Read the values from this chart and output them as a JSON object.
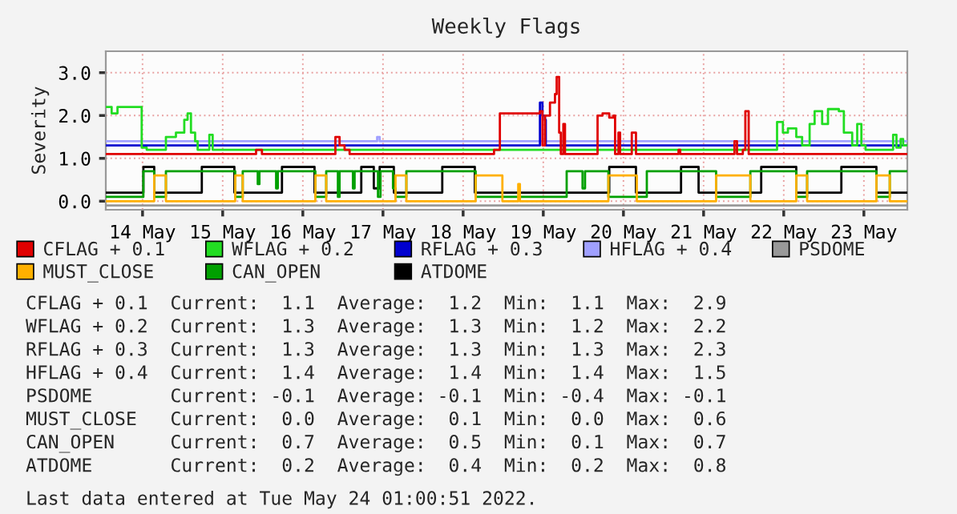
{
  "chart_data": {
    "type": "step",
    "title": "Weekly Flags",
    "ylabel": "Severity",
    "xlim": [
      "2022-05-13T13:00",
      "2022-05-23T13:00"
    ],
    "xticks": [
      {
        "value": "2022-05-14",
        "label": "14 May"
      },
      {
        "value": "2022-05-15",
        "label": "15 May"
      },
      {
        "value": "2022-05-16",
        "label": "16 May"
      },
      {
        "value": "2022-05-17",
        "label": "17 May"
      },
      {
        "value": "2022-05-18",
        "label": "18 May"
      },
      {
        "value": "2022-05-19",
        "label": "19 May"
      },
      {
        "value": "2022-05-20",
        "label": "20 May"
      },
      {
        "value": "2022-05-21",
        "label": "21 May"
      },
      {
        "value": "2022-05-22",
        "label": "22 May"
      },
      {
        "value": "2022-05-23",
        "label": "23 May"
      }
    ],
    "ylim": [
      -0.2,
      3.5
    ],
    "yticks": [
      {
        "value": 0,
        "label": "0.0"
      },
      {
        "value": 1,
        "label": "1.0"
      },
      {
        "value": 2,
        "label": "2.0"
      },
      {
        "value": 3,
        "label": "3.0"
      }
    ],
    "grid": true,
    "legend": "bottom",
    "series": [
      {
        "name": "CFLAG + 0.1",
        "color": "#e00000",
        "x": [
          "2022-05-13T13:00",
          "2022-05-15T10:00",
          "2022-05-15T11:45",
          "2022-05-16T09:45",
          "2022-05-16T11:00",
          "2022-05-16T12:30",
          "2022-05-16T14:00",
          "2022-05-18T09:15",
          "2022-05-18T11:00",
          "2022-05-18T23:00",
          "2022-05-18T23:45",
          "2022-05-19T00:30",
          "2022-05-19T02:00",
          "2022-05-19T03:30",
          "2022-05-19T04:00",
          "2022-05-19T04:45",
          "2022-05-19T05:15",
          "2022-05-19T06:00",
          "2022-05-19T06:30",
          "2022-05-19T16:15",
          "2022-05-19T17:45",
          "2022-05-19T19:45",
          "2022-05-19T21:00",
          "2022-05-19T21:30",
          "2022-05-19T22:30",
          "2022-05-19T23:00",
          "2022-05-20T02:30",
          "2022-05-20T03:45",
          "2022-05-20T16:30",
          "2022-05-20T17:00",
          "2022-05-21T09:15",
          "2022-05-21T10:00",
          "2022-05-21T11:45",
          "2022-05-21T12:30",
          "2022-05-21T13:30",
          "2022-05-23T13:00"
        ],
        "values": [
          1.1,
          1.2,
          1.1,
          1.5,
          1.3,
          1.2,
          1.1,
          1.2,
          2.05,
          2.1,
          1.3,
          2.0,
          2.3,
          2.5,
          2.9,
          1.6,
          1.1,
          1.8,
          1.1,
          2.0,
          2.05,
          1.95,
          2.0,
          1.1,
          1.6,
          1.1,
          1.6,
          1.1,
          1.2,
          1.1,
          1.4,
          1.1,
          1.2,
          2.1,
          1.1,
          1.1
        ]
      },
      {
        "name": "WFLAG + 0.2",
        "color": "#22dd22",
        "x": [
          "2022-05-13T13:00",
          "2022-05-13T14:45",
          "2022-05-13T16:30",
          "2022-05-13T23:15",
          "2022-05-13T23:45",
          "2022-05-14T01:15",
          "2022-05-14T06:00",
          "2022-05-14T07:00",
          "2022-05-14T10:00",
          "2022-05-14T12:30",
          "2022-05-14T13:30",
          "2022-05-14T14:30",
          "2022-05-14T15:45",
          "2022-05-14T16:30",
          "2022-05-14T19:30",
          "2022-05-14T20:00",
          "2022-05-14T21:00",
          "2022-05-21T20:30",
          "2022-05-21T22:00",
          "2022-05-21T23:45",
          "2022-05-22T01:15",
          "2022-05-22T03:45",
          "2022-05-22T05:30",
          "2022-05-22T07:45",
          "2022-05-22T09:15",
          "2022-05-22T11:30",
          "2022-05-22T13:15",
          "2022-05-22T16:30",
          "2022-05-22T18:00",
          "2022-05-22T20:30",
          "2022-05-22T22:00",
          "2022-05-22T23:15",
          "2022-05-23T00:30",
          "2022-05-23T08:15",
          "2022-05-23T08:45",
          "2022-05-23T09:45",
          "2022-05-23T11:00",
          "2022-05-23T11:45",
          "2022-05-23T13:00"
        ],
        "values": [
          2.2,
          2.05,
          2.2,
          2.2,
          1.25,
          1.2,
          1.2,
          1.5,
          1.6,
          1.9,
          2.05,
          1.6,
          1.4,
          1.2,
          1.2,
          1.55,
          1.2,
          1.2,
          1.85,
          1.6,
          1.7,
          1.5,
          1.3,
          1.8,
          2.1,
          1.8,
          2.15,
          2.1,
          1.6,
          1.3,
          1.8,
          1.3,
          1.2,
          1.2,
          1.55,
          1.25,
          1.45,
          1.3,
          1.3
        ]
      },
      {
        "name": "RFLAG + 0.3",
        "color": "#0000d0",
        "x": [
          "2022-05-13T13:00",
          "2022-05-18T22:45",
          "2022-05-18T23:00",
          "2022-05-18T23:45",
          "2022-05-19T00:30",
          "2022-05-19T00:45",
          "2022-05-23T13:00"
        ],
        "values": [
          1.3,
          1.3,
          2.3,
          2.0,
          1.9,
          1.3,
          1.3
        ]
      },
      {
        "name": "HFLAG + 0.4",
        "color": "#a0a0ff",
        "x": [
          "2022-05-13T13:00",
          "2022-05-16T22:00",
          "2022-05-16T22:15",
          "2022-05-16T23:00",
          "2022-05-23T13:00"
        ],
        "values": [
          1.4,
          1.4,
          1.5,
          1.4,
          1.4
        ]
      },
      {
        "name": "PSDOME",
        "color": "#999999",
        "x": [
          "2022-05-13T13:00",
          "2022-05-23T13:00"
        ],
        "values": [
          -0.1,
          -0.1
        ]
      },
      {
        "name": "MUST_CLOSE",
        "color": "#ffb000",
        "x": [
          "2022-05-13T13:00",
          "2022-05-14T03:30",
          "2022-05-14T07:00",
          "2022-05-15T03:45",
          "2022-05-15T06:00",
          "2022-05-16T03:45",
          "2022-05-16T07:00",
          "2022-05-17T03:45",
          "2022-05-17T07:00",
          "2022-05-18T03:45",
          "2022-05-18T11:45",
          "2022-05-18T16:30",
          "2022-05-18T17:00",
          "2022-05-19T19:30",
          "2022-05-20T04:00",
          "2022-05-21T03:45",
          "2022-05-21T14:00",
          "2022-05-22T03:45",
          "2022-05-22T07:00",
          "2022-05-23T03:45",
          "2022-05-23T07:45",
          "2022-05-23T13:00"
        ],
        "values": [
          0.0,
          0.6,
          0.0,
          0.6,
          0.0,
          0.6,
          0.0,
          0.6,
          0.0,
          0.6,
          0.0,
          0.4,
          0.0,
          0.6,
          0.0,
          0.6,
          0.0,
          0.6,
          0.0,
          0.6,
          0.0,
          0.0
        ]
      },
      {
        "name": "CAN_OPEN",
        "color": "#00a000",
        "x": [
          "2022-05-13T13:00",
          "2022-05-14T00:15",
          "2022-05-14T03:30",
          "2022-05-14T07:00",
          "2022-05-15T03:45",
          "2022-05-15T06:00",
          "2022-05-15T10:30",
          "2022-05-15T11:00",
          "2022-05-15T16:00",
          "2022-05-15T16:30",
          "2022-05-16T03:45",
          "2022-05-16T07:00",
          "2022-05-16T10:30",
          "2022-05-16T11:00",
          "2022-05-16T15:00",
          "2022-05-16T15:30",
          "2022-05-16T22:30",
          "2022-05-16T23:15",
          "2022-05-17T03:00",
          "2022-05-17T03:45",
          "2022-05-17T07:00",
          "2022-05-18T03:45",
          "2022-05-19T07:00",
          "2022-05-19T11:45",
          "2022-05-19T12:30",
          "2022-05-19T19:30",
          "2022-05-20T07:00",
          "2022-05-21T03:45",
          "2022-05-21T14:00",
          "2022-05-22T03:45",
          "2022-05-22T07:00",
          "2022-05-23T03:45",
          "2022-05-23T07:45",
          "2022-05-23T13:00"
        ],
        "values": [
          0.1,
          0.7,
          0.1,
          0.7,
          0.1,
          0.7,
          0.4,
          0.7,
          0.3,
          0.7,
          0.1,
          0.7,
          0.1,
          0.7,
          0.3,
          0.7,
          0.1,
          0.7,
          0.3,
          0.1,
          0.7,
          0.1,
          0.7,
          0.3,
          0.7,
          0.1,
          0.7,
          0.1,
          0.7,
          0.1,
          0.7,
          0.1,
          0.7,
          0.7
        ]
      },
      {
        "name": "ATDOME",
        "color": "#000000",
        "x": [
          "2022-05-13T13:00",
          "2022-05-14T00:15",
          "2022-05-14T03:30",
          "2022-05-14T17:45",
          "2022-05-15T03:30",
          "2022-05-15T17:45",
          "2022-05-16T03:30",
          "2022-05-16T17:30",
          "2022-05-16T21:15",
          "2022-05-16T23:00",
          "2022-05-17T03:15",
          "2022-05-17T17:45",
          "2022-05-18T03:30",
          "2022-05-19T19:45",
          "2022-05-20T03:45",
          "2022-05-20T17:15",
          "2022-05-20T22:30",
          "2022-05-21T17:15",
          "2022-05-22T03:45",
          "2022-05-22T17:15",
          "2022-05-23T03:45",
          "2022-05-23T13:00"
        ],
        "values": [
          0.2,
          0.8,
          0.2,
          0.8,
          0.2,
          0.8,
          0.2,
          0.8,
          0.3,
          0.8,
          0.2,
          0.8,
          0.2,
          0.8,
          0.2,
          0.8,
          0.2,
          0.8,
          0.2,
          0.8,
          0.2,
          0.2
        ]
      }
    ],
    "annotations": [
      "CFLAG + 0.1  Current:  1.1  Average:  1.2  Min:  1.1  Max:  2.9",
      "WFLAG + 0.2  Current:  1.3  Average:  1.3  Min:  1.2  Max:  2.2",
      "RFLAG + 0.3  Current:  1.3  Average:  1.3  Min:  1.3  Max:  2.3",
      "HFLAG + 0.4  Current:  1.4  Average:  1.4  Min:  1.4  Max:  1.5",
      "PSDOME       Current: -0.1  Average: -0.1  Min: -0.4  Max: -0.1",
      "MUST_CLOSE   Current:  0.0  Average:  0.1  Min:  0.0  Max:  0.6",
      "CAN_OPEN     Current:  0.7  Average:  0.5  Min:  0.1  Max:  0.7",
      "ATDOME       Current:  0.2  Average:  0.4  Min:  0.2  Max:  0.8",
      "Last data entered at Tue May 24 01:00:51 2022."
    ]
  }
}
